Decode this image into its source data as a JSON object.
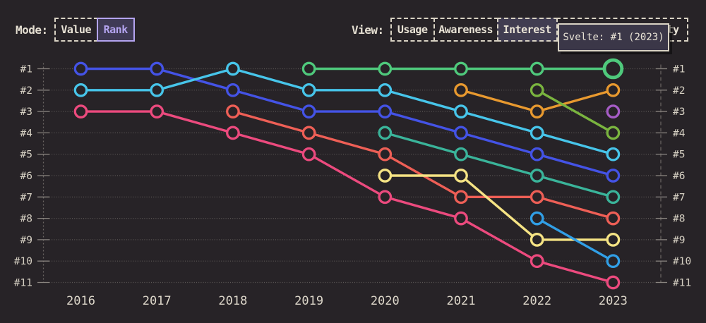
{
  "colors": {
    "background": "#272327",
    "text": "#e4ded1",
    "grid": "#6b6663",
    "tick": "#8a8580",
    "accent_lavender": "#b4a4f0",
    "view_active_bg": "#413d51",
    "mode_active_bg": "#3f3a55",
    "tooltip_bg": "#3b3748",
    "tooltip_border": "#d9d3c4"
  },
  "controls": {
    "mode": {
      "label": "Mode:",
      "options": [
        {
          "label": "Value",
          "active": false
        },
        {
          "label": "Rank",
          "active": true
        }
      ]
    },
    "view": {
      "label": "View:",
      "options": [
        {
          "label": "Usage",
          "active": false
        },
        {
          "label": "Awareness",
          "active": false
        },
        {
          "label": "Interest",
          "active": true
        },
        {
          "label": "Positivity",
          "active": false
        }
      ]
    }
  },
  "tooltip": {
    "text": "Svelte: #1 (2023)"
  },
  "chart_data": {
    "type": "line",
    "subtype": "bump-rank-chart",
    "x": [
      2016,
      2017,
      2018,
      2019,
      2020,
      2021,
      2022,
      2023
    ],
    "rank_labels": [
      "#1",
      "#2",
      "#3",
      "#4",
      "#5",
      "#6",
      "#7",
      "#8",
      "#9",
      "#10",
      "#11"
    ],
    "ylim": [
      1,
      11
    ],
    "y_axis_sides": "both",
    "grid": "dotted-horizontal",
    "series": [
      {
        "name": "series-royal-blue",
        "color": "#4453e6",
        "ranks": [
          1,
          1,
          2,
          3,
          3,
          4,
          5,
          6
        ]
      },
      {
        "name": "series-cyan",
        "color": "#47c5ea",
        "ranks": [
          2,
          2,
          1,
          2,
          2,
          3,
          4,
          5
        ]
      },
      {
        "name": "series-pink",
        "color": "#ec4a7e",
        "ranks": [
          3,
          3,
          4,
          5,
          7,
          8,
          10,
          11
        ]
      },
      {
        "name": "series-salmon",
        "color": "#ee5f56",
        "ranks": [
          null,
          null,
          3,
          4,
          5,
          7,
          7,
          8
        ]
      },
      {
        "name": "Svelte",
        "color": "#4fc97c",
        "ranks": [
          null,
          null,
          null,
          1,
          1,
          1,
          1,
          1
        ]
      },
      {
        "name": "series-teal",
        "color": "#3ab49a",
        "ranks": [
          null,
          null,
          null,
          null,
          4,
          5,
          6,
          7
        ]
      },
      {
        "name": "series-yellow",
        "color": "#f5e384",
        "ranks": [
          null,
          null,
          null,
          null,
          6,
          6,
          9,
          9
        ]
      },
      {
        "name": "series-amber",
        "color": "#e8992f",
        "ranks": [
          null,
          null,
          null,
          null,
          null,
          2,
          3,
          2
        ]
      },
      {
        "name": "series-lime",
        "color": "#7ab43f",
        "ranks": [
          null,
          null,
          null,
          null,
          null,
          null,
          2,
          4
        ]
      },
      {
        "name": "series-sky-blue",
        "color": "#319fe6",
        "ranks": [
          null,
          null,
          null,
          null,
          null,
          null,
          8,
          10
        ]
      },
      {
        "name": "series-purple",
        "color": "#a65cc6",
        "ranks": [
          null,
          null,
          null,
          null,
          null,
          null,
          null,
          3
        ]
      }
    ],
    "highlight": {
      "series": "Svelte",
      "year": 2023,
      "rank": 1
    }
  }
}
